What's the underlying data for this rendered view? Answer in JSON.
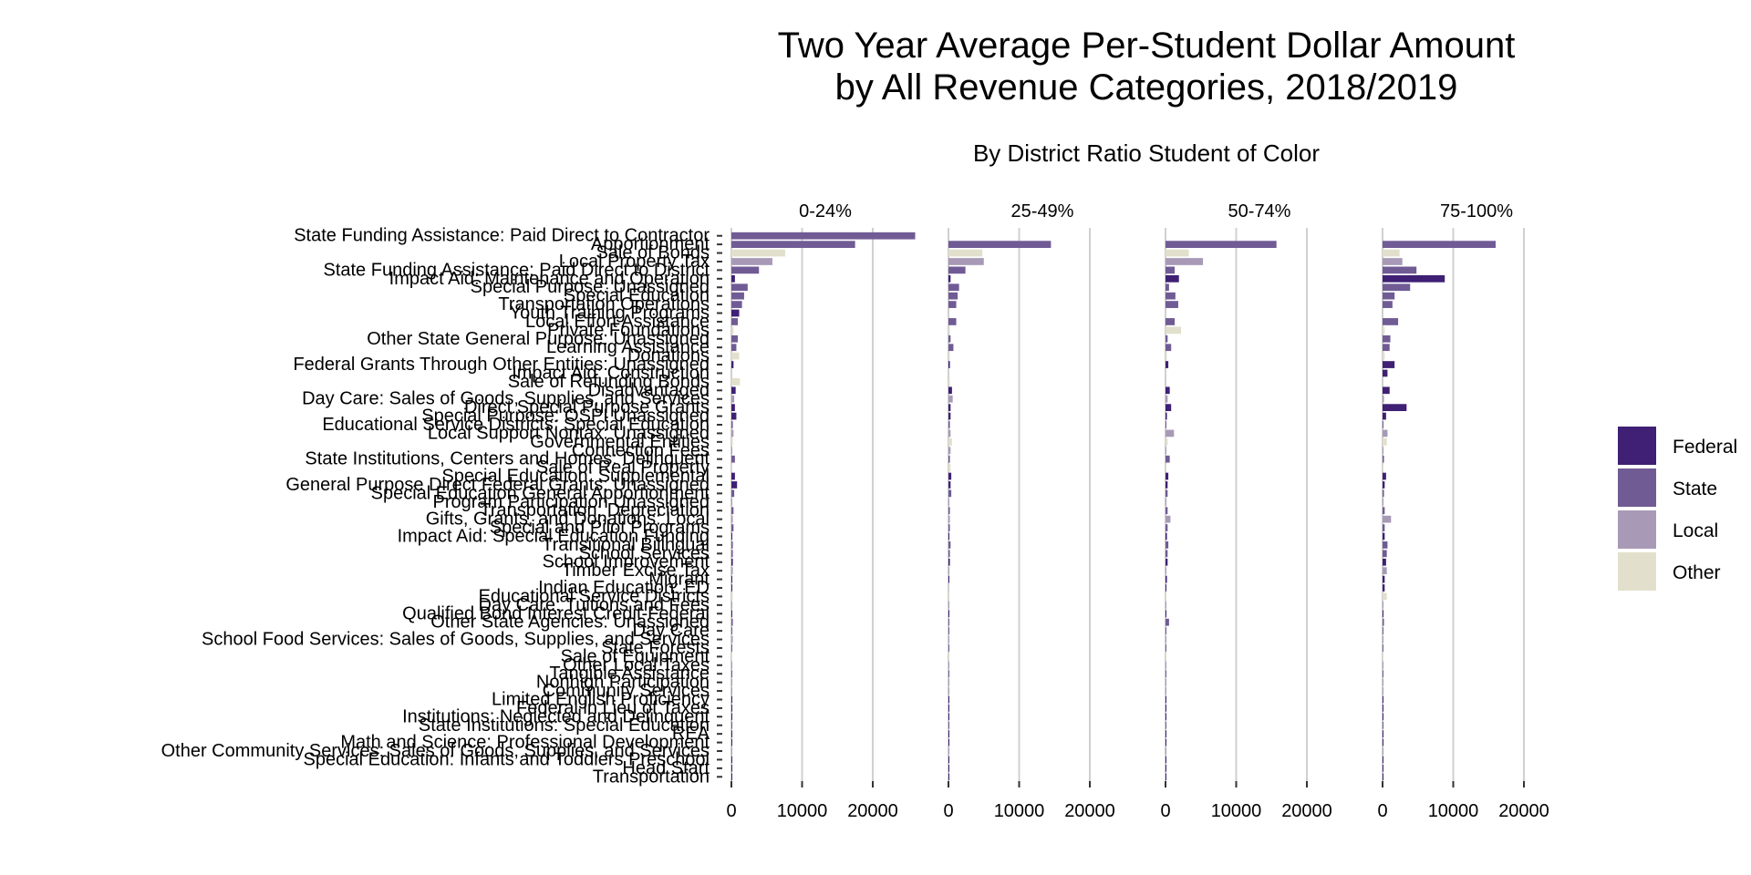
{
  "chart_data": {
    "type": "bar",
    "orientation": "horizontal",
    "title": "Two Year Average Per-Student Dollar Amount\nby All Revenue Categories, 2018/2019",
    "subtitle": "By District Ratio Student of Color",
    "facets": [
      "0-24%",
      "25-49%",
      "50-74%",
      "75-100%"
    ],
    "xlim": [
      0,
      25000
    ],
    "xticks": [
      0,
      10000,
      20000
    ],
    "xtick_labels": [
      "0",
      "10000",
      "20000"
    ],
    "grid": "vertical",
    "legend": {
      "placement": "right",
      "entries": [
        {
          "name": "Federal",
          "color": "#3f2074"
        },
        {
          "name": "State",
          "color": "#705b95"
        },
        {
          "name": "Local",
          "color": "#a89ab6"
        },
        {
          "name": "Other",
          "color": "#e2dfcc"
        }
      ]
    },
    "categories": [
      {
        "name": "State Funding Assistance: Paid Direct to Contractor",
        "type": "State",
        "values": [
          26000,
          0,
          0,
          0
        ]
      },
      {
        "name": "Apportionment",
        "type": "State",
        "values": [
          17500,
          14500,
          15700,
          16000
        ]
      },
      {
        "name": "Sale of Bonds",
        "type": "Other",
        "values": [
          7600,
          4800,
          3300,
          2400
        ]
      },
      {
        "name": "Local Property Tax",
        "type": "Local",
        "values": [
          5800,
          5000,
          5300,
          2800
        ]
      },
      {
        "name": "State Funding Assistance: Paid Direct to District",
        "type": "State",
        "values": [
          3900,
          2400,
          1300,
          4800
        ]
      },
      {
        "name": "Impact Aid: Maintenance and Operation",
        "type": "Federal",
        "values": [
          500,
          300,
          1900,
          8800
        ]
      },
      {
        "name": "Special Purpose: Unassigned",
        "type": "State",
        "values": [
          2300,
          1500,
          500,
          3900
        ]
      },
      {
        "name": "Special Education",
        "type": "State",
        "values": [
          1800,
          1300,
          1400,
          1700
        ]
      },
      {
        "name": "Transportation Operations",
        "type": "State",
        "values": [
          1500,
          1100,
          1800,
          1400
        ]
      },
      {
        "name": "Youth Training Programs",
        "type": "Federal",
        "values": [
          1100,
          0,
          0,
          0
        ]
      },
      {
        "name": "Local Effort Assistance",
        "type": "State",
        "values": [
          900,
          1100,
          1300,
          2200
        ]
      },
      {
        "name": "Private Foundations",
        "type": "Other",
        "values": [
          300,
          200,
          2200,
          300
        ]
      },
      {
        "name": "Other State General Purpose: Unassigned",
        "type": "State",
        "values": [
          900,
          300,
          300,
          1100
        ]
      },
      {
        "name": "Learning Assistance",
        "type": "State",
        "values": [
          700,
          700,
          800,
          1000
        ]
      },
      {
        "name": "Donations",
        "type": "Other",
        "values": [
          1100,
          200,
          200,
          300
        ]
      },
      {
        "name": "Federal Grants Through Other Entities: Unassigned",
        "type": "Federal",
        "values": [
          300,
          200,
          400,
          1700
        ]
      },
      {
        "name": "Impact Aid: Construction",
        "type": "Federal",
        "values": [
          0,
          0,
          0,
          700
        ]
      },
      {
        "name": "Sale of Refunding Bonds",
        "type": "Other",
        "values": [
          1200,
          200,
          0,
          0
        ]
      },
      {
        "name": "Disadvantaged",
        "type": "Federal",
        "values": [
          600,
          500,
          600,
          1000
        ]
      },
      {
        "name": "Day Care: Sales of Goods, Supplies, and Services",
        "type": "Local",
        "values": [
          400,
          600,
          300,
          200
        ]
      },
      {
        "name": "Direct Special Purpose Grants",
        "type": "Federal",
        "values": [
          500,
          300,
          800,
          3400
        ]
      },
      {
        "name": "Special Purpose: OSPI Unassigned",
        "type": "Federal",
        "values": [
          700,
          300,
          200,
          500
        ]
      },
      {
        "name": "Educational Service Districts: Special Education",
        "type": "State",
        "values": [
          200,
          200,
          100,
          100
        ]
      },
      {
        "name": "Local Support Nontax: Unassigned",
        "type": "Local",
        "values": [
          300,
          300,
          1200,
          700
        ]
      },
      {
        "name": "Governmental Entities",
        "type": "Other",
        "values": [
          200,
          500,
          300,
          600
        ]
      },
      {
        "name": "Connection Fees",
        "type": "Local",
        "values": [
          100,
          300,
          100,
          100
        ]
      },
      {
        "name": "State Institutions, Centers and Homes: Delinquent",
        "type": "State",
        "values": [
          500,
          200,
          600,
          200
        ]
      },
      {
        "name": "Sale of Real Property",
        "type": "Other",
        "values": [
          100,
          300,
          100,
          100
        ]
      },
      {
        "name": "Special Education: Supplemental",
        "type": "Federal",
        "values": [
          500,
          400,
          400,
          500
        ]
      },
      {
        "name": "General Purpose Direct Federal Grants: Unassigned",
        "type": "Federal",
        "values": [
          800,
          300,
          300,
          300
        ]
      },
      {
        "name": "Special Education General Apportionment",
        "type": "State",
        "values": [
          400,
          400,
          300,
          200
        ]
      },
      {
        "name": "Program Participation Unassigned",
        "type": "Local",
        "values": [
          100,
          100,
          100,
          100
        ]
      },
      {
        "name": "Transportation: Depreciation",
        "type": "State",
        "values": [
          300,
          200,
          300,
          300
        ]
      },
      {
        "name": "Gifts, Grants, and Donations: Local",
        "type": "Local",
        "values": [
          200,
          200,
          700,
          1200
        ]
      },
      {
        "name": "Special and Pilot Programs",
        "type": "State",
        "values": [
          300,
          200,
          300,
          300
        ]
      },
      {
        "name": "Impact Aid: Special Education Funding",
        "type": "Federal",
        "values": [
          100,
          100,
          200,
          300
        ]
      },
      {
        "name": "Transitional Bilingual",
        "type": "State",
        "values": [
          200,
          300,
          400,
          700
        ]
      },
      {
        "name": "School Services",
        "type": "State",
        "values": [
          200,
          200,
          300,
          600
        ]
      },
      {
        "name": "School Improvement",
        "type": "Federal",
        "values": [
          200,
          200,
          300,
          500
        ]
      },
      {
        "name": "Timber Excise Tax",
        "type": "Local",
        "values": [
          200,
          100,
          100,
          600
        ]
      },
      {
        "name": "Migrant",
        "type": "Federal",
        "values": [
          100,
          100,
          200,
          300
        ]
      },
      {
        "name": "Indian Education: ED",
        "type": "Federal",
        "values": [
          100,
          0,
          100,
          300
        ]
      },
      {
        "name": "Educational Service Districts",
        "type": "Other",
        "values": [
          200,
          100,
          100,
          600
        ]
      },
      {
        "name": "Day Care: Tuitions and Fees",
        "type": "Local",
        "values": [
          100,
          100,
          100,
          100
        ]
      },
      {
        "name": "Qualified Bond Interest Credit-Federal",
        "type": "Federal",
        "values": [
          100,
          100,
          100,
          100
        ]
      },
      {
        "name": "Other State Agencies: Unassigned",
        "type": "State",
        "values": [
          200,
          100,
          500,
          200
        ]
      },
      {
        "name": "Day Care",
        "type": "State",
        "values": [
          100,
          100,
          100,
          100
        ]
      },
      {
        "name": "School Food Services: Sales of Goods, Supplies, and Services",
        "type": "Local",
        "values": [
          200,
          100,
          100,
          100
        ]
      },
      {
        "name": "State Forests",
        "type": "State",
        "values": [
          100,
          100,
          100,
          100
        ]
      },
      {
        "name": "Sale of Equipment",
        "type": "Other",
        "values": [
          100,
          100,
          100,
          100
        ]
      },
      {
        "name": "Other Local Taxes",
        "type": "Local",
        "values": [
          100,
          100,
          100,
          100
        ]
      },
      {
        "name": "Tangible Assistance",
        "type": "State",
        "values": [
          100,
          100,
          100,
          100
        ]
      },
      {
        "name": "Nonhigh Participation",
        "type": "Local",
        "values": [
          100,
          100,
          100,
          100
        ]
      },
      {
        "name": "Community Services",
        "type": "Local",
        "values": [
          100,
          100,
          100,
          100
        ]
      },
      {
        "name": "Limited English Proficiency",
        "type": "Federal",
        "values": [
          100,
          100,
          100,
          100
        ]
      },
      {
        "name": "Federal in Lieu of Taxes",
        "type": "Federal",
        "values": [
          100,
          100,
          100,
          100
        ]
      },
      {
        "name": "Institutions: Neglected and Delinquent",
        "type": "Federal",
        "values": [
          100,
          100,
          100,
          100
        ]
      },
      {
        "name": "State Institutions: Special Education",
        "type": "State",
        "values": [
          100,
          100,
          100,
          100
        ]
      },
      {
        "name": "REA",
        "type": "Federal",
        "values": [
          100,
          100,
          100,
          100
        ]
      },
      {
        "name": "Math and Science: Professional Development",
        "type": "Federal",
        "values": [
          100,
          100,
          100,
          100
        ]
      },
      {
        "name": "Other Community Services: Sales of Goods, Supplies, and Services",
        "type": "Local",
        "values": [
          100,
          100,
          100,
          100
        ]
      },
      {
        "name": "Special Education: Infants and Toddlers Preschool",
        "type": "Federal",
        "values": [
          100,
          100,
          100,
          100
        ]
      },
      {
        "name": "Head Start",
        "type": "Federal",
        "values": [
          100,
          100,
          100,
          100
        ]
      },
      {
        "name": "Transportation",
        "type": "Federal",
        "values": [
          100,
          100,
          100,
          100
        ]
      }
    ]
  }
}
